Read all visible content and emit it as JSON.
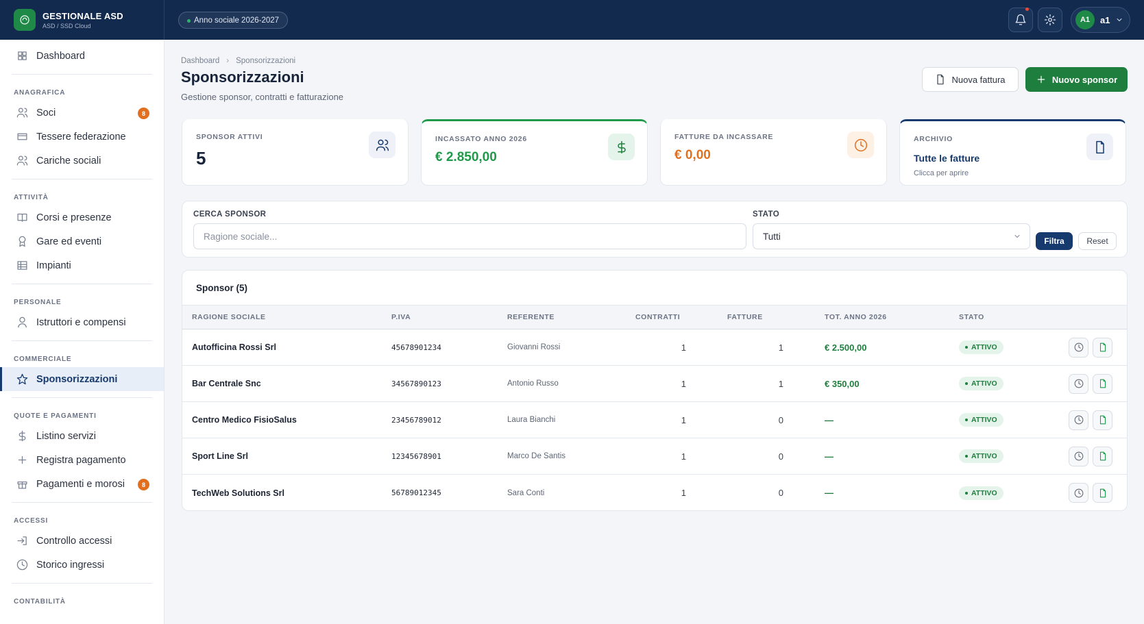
{
  "header": {
    "brand": "GESTIONALE ASD",
    "subtitle": "ASD / SSD Cloud",
    "season": "Anno sociale 2026-2027",
    "avatar": "A1",
    "user": "a1"
  },
  "sidebar": {
    "top": "Dashboard",
    "sections": [
      {
        "title": "ANAGRAFICA",
        "items": [
          {
            "label": "Soci",
            "badge": "8"
          },
          {
            "label": "Tessere federazione"
          },
          {
            "label": "Cariche sociali"
          }
        ]
      },
      {
        "title": "ATTIVITÀ",
        "items": [
          {
            "label": "Corsi e presenze"
          },
          {
            "label": "Gare ed eventi"
          },
          {
            "label": "Impianti"
          }
        ]
      },
      {
        "title": "PERSONALE",
        "items": [
          {
            "label": "Istruttori e compensi"
          }
        ]
      },
      {
        "title": "COMMERCIALE",
        "items": [
          {
            "label": "Sponsorizzazioni",
            "active": true
          }
        ]
      },
      {
        "title": "QUOTE E PAGAMENTI",
        "items": [
          {
            "label": "Listino servizi"
          },
          {
            "label": "Registra pagamento"
          },
          {
            "label": "Pagamenti e morosi",
            "badge": "8"
          }
        ]
      },
      {
        "title": "ACCESSI",
        "items": [
          {
            "label": "Controllo accessi"
          },
          {
            "label": "Storico ingressi"
          }
        ]
      },
      {
        "title": "CONTABILITÀ",
        "items": []
      }
    ]
  },
  "page": {
    "breadcrumb": [
      "Dashboard",
      "Sponsorizzazioni"
    ],
    "title": "Sponsorizzazioni",
    "subtitle": "Gestione sponsor, contratti e fatturazione",
    "secondary_action": "Nuova fattura",
    "primary_action": "Nuovo sponsor"
  },
  "stats": [
    {
      "label": "SPONSOR ATTIVI",
      "value": "5"
    },
    {
      "label": "INCASSATO ANNO 2026",
      "value": "€ 2.850,00"
    },
    {
      "label": "FATTURE DA INCASSARE",
      "value": "€ 0,00"
    },
    {
      "label": "ARCHIVIO",
      "value": "Tutte le fatture",
      "note": "Clicca per aprire"
    }
  ],
  "filters": {
    "search_label": "CERCA SPONSOR",
    "search_placeholder": "Ragione sociale...",
    "status_label": "STATO",
    "status_value": "Tutti",
    "apply": "Filtra",
    "reset": "Reset"
  },
  "table": {
    "title": "Sponsor (5)",
    "columns": [
      "RAGIONE SOCIALE",
      "P.IVA",
      "REFERENTE",
      "CONTRATTI",
      "FATTURE",
      "TOT. ANNO 2026",
      "STATO"
    ],
    "rows": [
      [
        "Autofficina Rossi Srl",
        "45678901234",
        "Giovanni Rossi",
        "1",
        "1",
        "€ 2.500,00",
        "ATTIVO"
      ],
      [
        "Bar Centrale Snc",
        "34567890123",
        "Antonio Russo",
        "1",
        "1",
        "€ 350,00",
        "ATTIVO"
      ],
      [
        "Centro Medico FisioSalus",
        "23456789012",
        "Laura Bianchi",
        "1",
        "0",
        "—",
        "ATTIVO"
      ],
      [
        "Sport Line Srl",
        "12345678901",
        "Marco De Santis",
        "1",
        "0",
        "—",
        "ATTIVO"
      ],
      [
        "TechWeb Solutions Srl",
        "56789012345",
        "Sara Conti",
        "1",
        "0",
        "—",
        "ATTIVO"
      ]
    ]
  }
}
